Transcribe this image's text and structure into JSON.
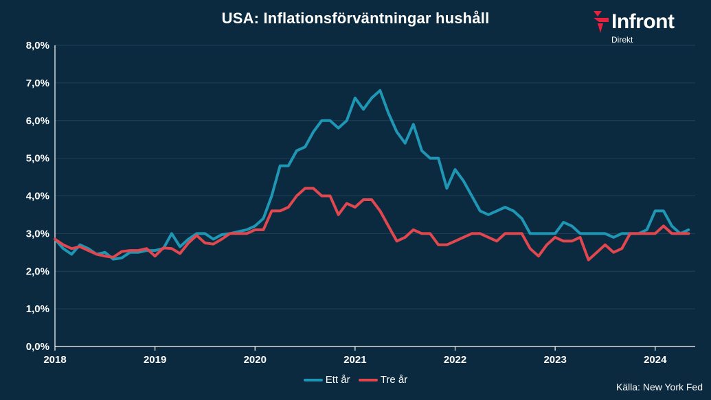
{
  "title": "USA: Inflationsförväntningar hushåll",
  "logo": {
    "name": "Infront",
    "sub": "Direkt",
    "color": "#e8213c"
  },
  "source": "Källa:  New York Fed",
  "colors": {
    "background": "#0b2a3f",
    "grid": "#1e4258",
    "axis": "#ffffff"
  },
  "chart_data": {
    "type": "line",
    "title": "USA: Inflationsförväntningar hushåll",
    "xlabel": "",
    "ylabel": "",
    "ylim": [
      0,
      8
    ],
    "xlim": [
      2018.0,
      2024.4
    ],
    "y_ticks": [
      "0,0%",
      "1,0%",
      "2,0%",
      "3,0%",
      "4,0%",
      "5,0%",
      "6,0%",
      "7,0%",
      "8,0%"
    ],
    "x_ticks": [
      "2018",
      "2019",
      "2020",
      "2021",
      "2022",
      "2023",
      "2024"
    ],
    "grid": true,
    "legend_position": "bottom",
    "x": [
      "2018-01",
      "2018-02",
      "2018-03",
      "2018-04",
      "2018-05",
      "2018-06",
      "2018-07",
      "2018-08",
      "2018-09",
      "2018-10",
      "2018-11",
      "2018-12",
      "2019-01",
      "2019-02",
      "2019-03",
      "2019-04",
      "2019-05",
      "2019-06",
      "2019-07",
      "2019-08",
      "2019-09",
      "2019-10",
      "2019-11",
      "2019-12",
      "2020-01",
      "2020-02",
      "2020-03",
      "2020-04",
      "2020-05",
      "2020-06",
      "2020-07",
      "2020-08",
      "2020-09",
      "2020-10",
      "2020-11",
      "2020-12",
      "2021-01",
      "2021-02",
      "2021-03",
      "2021-04",
      "2021-05",
      "2021-06",
      "2021-07",
      "2021-08",
      "2021-09",
      "2021-10",
      "2021-11",
      "2021-12",
      "2022-01",
      "2022-02",
      "2022-03",
      "2022-04",
      "2022-05",
      "2022-06",
      "2022-07",
      "2022-08",
      "2022-09",
      "2022-10",
      "2022-11",
      "2022-12",
      "2023-01",
      "2023-02",
      "2023-03",
      "2023-04",
      "2023-05",
      "2023-06",
      "2023-07",
      "2023-08",
      "2023-09",
      "2023-10",
      "2023-11",
      "2023-12",
      "2024-01",
      "2024-02",
      "2024-03",
      "2024-04",
      "2024-05"
    ],
    "series": [
      {
        "name": "Ett år",
        "color": "#1e96b4",
        "values": [
          2.85,
          2.6,
          2.45,
          2.7,
          2.6,
          2.45,
          2.5,
          2.32,
          2.35,
          2.5,
          2.5,
          2.55,
          2.55,
          2.6,
          3.0,
          2.65,
          2.85,
          3.0,
          3.0,
          2.85,
          2.97,
          3.0,
          3.05,
          3.1,
          3.2,
          3.4,
          4.0,
          4.8,
          4.8,
          5.2,
          5.3,
          5.7,
          6.0,
          6.0,
          5.8,
          6.0,
          6.6,
          6.3,
          6.6,
          6.8,
          6.2,
          5.7,
          5.4,
          5.9,
          5.2,
          5.0,
          5.0,
          4.2,
          4.7,
          4.4,
          4.0,
          3.6,
          3.5,
          3.6,
          3.7,
          3.6,
          3.4,
          3.0,
          3.0,
          3.0,
          3.0,
          3.3,
          3.2,
          3.0,
          3.0,
          3.0,
          3.0,
          2.9,
          3.0,
          3.0,
          3.0,
          3.1,
          3.6,
          3.6,
          3.2,
          3.0,
          3.1
        ]
      },
      {
        "name": "Tre år",
        "color": "#e0474f",
        "values": [
          2.85,
          2.7,
          2.6,
          2.65,
          2.55,
          2.45,
          2.4,
          2.37,
          2.52,
          2.55,
          2.55,
          2.6,
          2.4,
          2.62,
          2.6,
          2.47,
          2.75,
          2.95,
          2.75,
          2.72,
          2.85,
          3.0,
          3.0,
          3.0,
          3.1,
          3.1,
          3.6,
          3.6,
          3.7,
          4.0,
          4.2,
          4.2,
          4.0,
          4.0,
          3.5,
          3.8,
          3.7,
          3.9,
          3.9,
          3.6,
          3.2,
          2.8,
          2.9,
          3.1,
          3.0,
          3.0,
          2.7,
          2.7,
          2.8,
          2.9,
          3.0,
          3.0,
          2.9,
          2.8,
          3.0,
          3.0,
          3.0,
          2.6,
          2.4,
          2.7,
          2.9,
          2.8,
          2.8,
          2.9,
          2.3,
          2.5,
          2.7,
          2.5,
          2.6,
          3.0,
          3.0,
          3.0,
          3.0,
          3.2,
          3.0,
          3.0,
          3.0
        ]
      }
    ]
  }
}
